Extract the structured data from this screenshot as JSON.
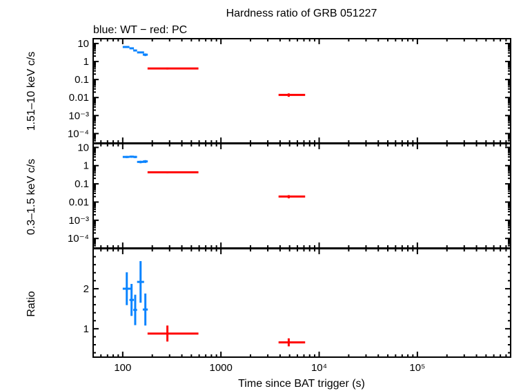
{
  "chart_data": {
    "type": "scatter",
    "title": "Hardness ratio of GRB 051227",
    "subtitle": "blue: WT − red: PC",
    "xlabel": "Time since BAT trigger (s)",
    "x_scale": "log",
    "xlim": [
      50,
      890000
    ],
    "x_ticks": [
      {
        "v": 100,
        "label": "100"
      },
      {
        "v": 1000,
        "label": "1000"
      },
      {
        "v": 10000,
        "label": "10⁴"
      },
      {
        "v": 100000,
        "label": "10⁵"
      }
    ],
    "colors": {
      "WT": "#0a84ff",
      "PC": "#ff0000"
    },
    "panels": [
      {
        "ylabel": "1.51–10 keV c/s",
        "y_scale": "log",
        "ylim": [
          3e-05,
          18.5
        ],
        "y_ticks": [
          {
            "v": 10,
            "label": "10"
          },
          {
            "v": 1,
            "label": "1"
          },
          {
            "v": 0.1,
            "label": "0.1"
          },
          {
            "v": 0.01,
            "label": "0.01"
          },
          {
            "v": 0.001,
            "label": "10⁻³"
          },
          {
            "v": 0.0001,
            "label": "10⁻⁴"
          }
        ],
        "series": [
          {
            "name": "WT",
            "points": [
              {
                "x": 110,
                "xlo": 100,
                "xhi": 117,
                "y": 6.4,
                "yerr": 0.5
              },
              {
                "x": 123,
                "xlo": 117,
                "xhi": 130,
                "y": 5.4,
                "yerr": 0.5
              },
              {
                "x": 134,
                "xlo": 128,
                "xhi": 140,
                "y": 4.1,
                "yerr": 0.4
              },
              {
                "x": 152,
                "xlo": 140,
                "xhi": 165,
                "y": 3.2,
                "yerr": 0.3
              },
              {
                "x": 170,
                "xlo": 160,
                "xhi": 180,
                "y": 2.4,
                "yerr": 0.4
              }
            ]
          },
          {
            "name": "PC",
            "points": [
              {
                "x": 285,
                "xlo": 179,
                "xhi": 590,
                "y": 0.41,
                "yerr": 0.05
              },
              {
                "x": 4900,
                "xlo": 3860,
                "xhi": 7200,
                "y": 0.014,
                "yerr": 0.003
              }
            ]
          }
        ]
      },
      {
        "ylabel": "0.3–1.5 keV c/s",
        "y_scale": "log",
        "ylim": [
          3e-05,
          16
        ],
        "y_ticks": [
          {
            "v": 10,
            "label": "10"
          },
          {
            "v": 1,
            "label": "1"
          },
          {
            "v": 0.1,
            "label": "0.1"
          },
          {
            "v": 0.01,
            "label": "0.01"
          },
          {
            "v": 0.001,
            "label": "10⁻³"
          },
          {
            "v": 0.0001,
            "label": "10⁻⁴"
          }
        ],
        "series": [
          {
            "name": "WT",
            "points": [
              {
                "x": 110,
                "xlo": 100,
                "xhi": 117,
                "y": 3.0,
                "yerr": 0.4
              },
              {
                "x": 123,
                "xlo": 117,
                "xhi": 130,
                "y": 3.1,
                "yerr": 0.4
              },
              {
                "x": 134,
                "xlo": 128,
                "xhi": 140,
                "y": 3.0,
                "yerr": 0.4
              },
              {
                "x": 152,
                "xlo": 140,
                "xhi": 165,
                "y": 1.6,
                "yerr": 0.25
              },
              {
                "x": 170,
                "xlo": 160,
                "xhi": 180,
                "y": 1.7,
                "yerr": 0.3
              }
            ]
          },
          {
            "name": "PC",
            "points": [
              {
                "x": 285,
                "xlo": 179,
                "xhi": 590,
                "y": 0.43,
                "yerr": 0.05
              },
              {
                "x": 4900,
                "xlo": 3860,
                "xhi": 7200,
                "y": 0.02,
                "yerr": 0.004
              }
            ]
          }
        ]
      },
      {
        "ylabel": "Ratio",
        "y_scale": "linear",
        "ylim": [
          0.29,
          3.0
        ],
        "y_ticks": [
          {
            "v": 1,
            "label": "1"
          },
          {
            "v": 2,
            "label": "2"
          }
        ],
        "series": [
          {
            "name": "WT",
            "points": [
              {
                "x": 110,
                "xlo": 100,
                "xhi": 125,
                "y": 2.0,
                "yerr": 0.41
              },
              {
                "x": 123,
                "xlo": 117,
                "xhi": 130,
                "y": 1.72,
                "yerr": 0.4
              },
              {
                "x": 134,
                "xlo": 128,
                "xhi": 140,
                "y": 1.47,
                "yerr": 0.38
              },
              {
                "x": 152,
                "xlo": 140,
                "xhi": 165,
                "y": 2.17,
                "yerr": 0.52
              },
              {
                "x": 170,
                "xlo": 160,
                "xhi": 180,
                "y": 1.48,
                "yerr": 0.4
              }
            ]
          },
          {
            "name": "PC",
            "points": [
              {
                "x": 285,
                "xlo": 179,
                "xhi": 590,
                "y": 0.88,
                "yerr": 0.2
              },
              {
                "x": 4900,
                "xlo": 3860,
                "xhi": 7200,
                "y": 0.66,
                "yerr": 0.1
              }
            ]
          }
        ]
      }
    ]
  }
}
